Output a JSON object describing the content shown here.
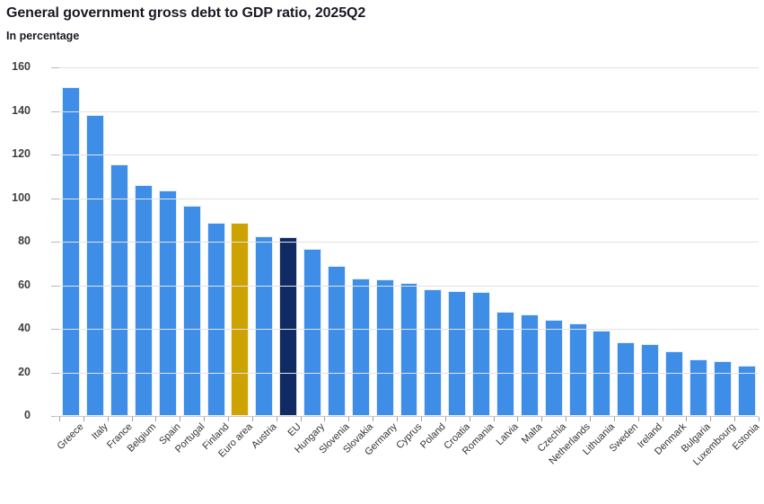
{
  "header": {
    "title": "General government gross debt to GDP ratio, 2025Q2",
    "subtitle": "In percentage"
  },
  "chart_data": {
    "type": "bar",
    "title": "General government gross debt to GDP ratio, 2025Q2",
    "subtitle": "In percentage",
    "unit": "percent of GDP",
    "xlabel": "",
    "ylabel": "",
    "ylim": [
      0,
      160
    ],
    "yticks": [
      0,
      20,
      40,
      60,
      80,
      100,
      120,
      140,
      160
    ],
    "grid": true,
    "legend": false,
    "categories": [
      "Greece",
      "Italy",
      "France",
      "Belgium",
      "Spain",
      "Portugal",
      "Finland",
      "Euro area",
      "Austria",
      "EU",
      "Hungary",
      "Slovenia",
      "Slovakia",
      "Germany",
      "Cyprus",
      "Poland",
      "Croatia",
      "Romania",
      "Latvia",
      "Malta",
      "Czechia",
      "Netherlands",
      "Lithuania",
      "Sweden",
      "Ireland",
      "Denmark",
      "Bulgaria",
      "Luxembourg",
      "Estonia"
    ],
    "values": [
      151,
      138,
      115.5,
      106,
      103.5,
      96.5,
      88.5,
      88.5,
      82.5,
      82,
      76.5,
      69,
      63,
      62.5,
      61,
      58,
      57.5,
      57,
      48,
      46.5,
      44,
      42.5,
      39,
      34,
      33,
      29.5,
      26,
      25,
      23
    ],
    "bar_colors": [
      "#3E8DE6",
      "#3E8DE6",
      "#3E8DE6",
      "#3E8DE6",
      "#3E8DE6",
      "#3E8DE6",
      "#3E8DE6",
      "#CCA303",
      "#3E8DE6",
      "#102B64",
      "#3E8DE6",
      "#3E8DE6",
      "#3E8DE6",
      "#3E8DE6",
      "#3E8DE6",
      "#3E8DE6",
      "#3E8DE6",
      "#3E8DE6",
      "#3E8DE6",
      "#3E8DE6",
      "#3E8DE6",
      "#3E8DE6",
      "#3E8DE6",
      "#3E8DE6",
      "#3E8DE6",
      "#3E8DE6",
      "#3E8DE6",
      "#3E8DE6",
      "#3E8DE6"
    ],
    "color_legend": {
      "member_state": "#3E8DE6",
      "euro_area": "#CCA303",
      "eu": "#102B64"
    }
  }
}
